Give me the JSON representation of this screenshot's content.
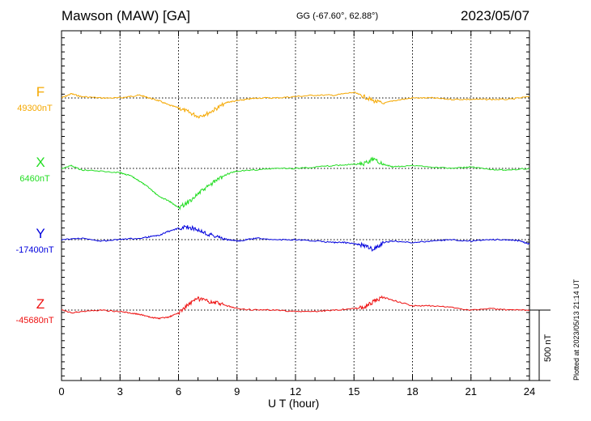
{
  "header": {
    "title": "Mawson (MAW)  [GA]",
    "coords": "GG (-67.60°,  62.88°)",
    "date": "2023/05/07"
  },
  "footer": {
    "xlabel": "U T (hour)",
    "plotted": "Plotted at 2023/05/13 21:14 UT",
    "scale_label": "500 nT"
  },
  "chart_data": {
    "type": "line",
    "xlabel": "U T (hour)",
    "xlim": [
      0,
      24
    ],
    "xticks": [
      0,
      3,
      6,
      9,
      12,
      15,
      18,
      21,
      24
    ],
    "grid": "dotted vertical at every 3 h, dotted horizontal at each baseline",
    "scale_bar_nT": 500,
    "series": [
      {
        "name": "F",
        "baseline_label": "49300nT",
        "baseline_nT": 49300,
        "color": "#f5a800",
        "x": [
          0,
          0.5,
          1,
          2,
          3,
          3.5,
          4,
          4.5,
          5,
          5.5,
          6,
          6.5,
          7,
          7.5,
          8,
          8.5,
          9,
          9.5,
          10,
          11,
          12,
          13,
          14,
          15,
          15.5,
          16,
          16.5,
          17,
          18,
          19,
          20,
          21,
          22,
          23,
          24
        ],
        "y": [
          49300,
          49330,
          49310,
          49300,
          49300,
          49310,
          49320,
          49300,
          49280,
          49250,
          49230,
          49200,
          49170,
          49190,
          49230,
          49270,
          49280,
          49290,
          49300,
          49300,
          49310,
          49320,
          49320,
          49340,
          49310,
          49280,
          49260,
          49280,
          49300,
          49300,
          49290,
          49290,
          49290,
          49290,
          49310
        ]
      },
      {
        "name": "X",
        "baseline_label": "6460nT",
        "baseline_nT": 6460,
        "color": "#22dd22",
        "x": [
          0,
          0.5,
          1,
          2,
          3,
          3.5,
          4,
          4.5,
          5,
          5.5,
          6,
          6.5,
          7,
          7.5,
          8,
          8.5,
          9,
          10,
          11,
          12,
          13,
          14,
          15,
          15.5,
          16,
          16.5,
          17,
          18,
          19,
          20,
          21,
          22,
          23,
          24
        ],
        "y": [
          6460,
          6480,
          6450,
          6440,
          6430,
          6410,
          6370,
          6320,
          6260,
          6230,
          6180,
          6220,
          6280,
          6330,
          6380,
          6420,
          6440,
          6450,
          6460,
          6460,
          6470,
          6480,
          6490,
          6490,
          6530,
          6490,
          6470,
          6480,
          6470,
          6460,
          6470,
          6450,
          6450,
          6460
        ]
      },
      {
        "name": "Y",
        "baseline_label": "-17400nT",
        "baseline_nT": -17400,
        "color": "#0000dd",
        "x": [
          0,
          1,
          2,
          3,
          4,
          4.5,
          5,
          5.5,
          6,
          6.5,
          7,
          7.5,
          8,
          8.5,
          9,
          9.5,
          10,
          11,
          12,
          13,
          14,
          14.5,
          15,
          15.5,
          16,
          16.5,
          17,
          18,
          19,
          20,
          21,
          22,
          23,
          23.5,
          24
        ],
        "y": [
          -17400,
          -17390,
          -17410,
          -17400,
          -17390,
          -17380,
          -17370,
          -17340,
          -17320,
          -17310,
          -17330,
          -17360,
          -17380,
          -17400,
          -17410,
          -17400,
          -17390,
          -17400,
          -17400,
          -17410,
          -17420,
          -17420,
          -17430,
          -17440,
          -17470,
          -17420,
          -17410,
          -17420,
          -17410,
          -17400,
          -17410,
          -17400,
          -17400,
          -17410,
          -17430
        ]
      },
      {
        "name": "Z",
        "baseline_label": "-45680nT",
        "baseline_nT": -45680,
        "color": "#ee1111",
        "x": [
          0,
          0.5,
          1,
          2,
          3,
          3.5,
          4,
          4.5,
          5,
          5.5,
          6,
          6.5,
          7,
          7.5,
          8,
          8.5,
          9,
          10,
          11,
          12,
          13,
          14,
          15,
          15.5,
          16,
          16.5,
          17,
          18,
          19,
          20,
          21,
          22,
          23,
          24
        ],
        "y": [
          -45680,
          -45700,
          -45690,
          -45680,
          -45690,
          -45700,
          -45710,
          -45730,
          -45740,
          -45730,
          -45700,
          -45640,
          -45600,
          -45620,
          -45630,
          -45650,
          -45670,
          -45680,
          -45680,
          -45690,
          -45690,
          -45680,
          -45670,
          -45660,
          -45620,
          -45590,
          -45610,
          -45650,
          -45650,
          -45660,
          -45680,
          -45670,
          -45680,
          -45680
        ]
      }
    ]
  }
}
